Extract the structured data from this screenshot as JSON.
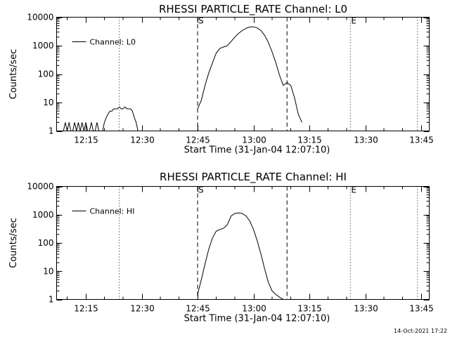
{
  "footer": {
    "timestamp": "14-Oct-2021 17:22"
  },
  "chart_data": [
    {
      "type": "line",
      "title": "RHESSI PARTICLE_RATE Channel: L0",
      "xlabel": "Start Time (31-Jan-04 12:07:10)",
      "ylabel": "Counts/sec",
      "yscale": "log",
      "ylim": [
        1,
        10000
      ],
      "xlim_minutes": [
        0,
        100
      ],
      "x_ticks": [
        "12:15",
        "12:30",
        "12:45",
        "13:00",
        "13:15",
        "13:30",
        "13:45"
      ],
      "y_ticks": [
        "1",
        "10",
        "100",
        "1000",
        "10000"
      ],
      "legend": {
        "placement": "top-left",
        "entries": [
          "Channel: L0"
        ]
      },
      "markers": [
        {
          "label": "S",
          "time": "12:45",
          "style": "dashed"
        },
        {
          "label": "E",
          "time": "13:26",
          "style": "dotted"
        }
      ],
      "vlines": [
        {
          "time": "12:24",
          "style": "dotted"
        },
        {
          "time": "12:45",
          "style": "dashed"
        },
        {
          "time": "13:09",
          "style": "dashed"
        },
        {
          "time": "13:26",
          "style": "dotted"
        },
        {
          "time": "13:44",
          "style": "dotted"
        }
      ],
      "series": [
        {
          "name": "Channel: L0",
          "segments": [
            {
              "x": [
                "12:09",
                "12:09:30",
                "12:10",
                "12:10:30",
                "12:11",
                "12:11:30",
                "12:12",
                "12:12:30",
                "12:13",
                "12:13:30",
                "12:14",
                "12:14:30",
                "12:15",
                "12:15:30",
                "12:16",
                "12:16:30",
                "12:17",
                "12:17:30",
                "12:18",
                "12:18:30",
                "12:19",
                "12:19:30",
                "12:20",
                "12:20:30",
                "12:21",
                "12:21:30",
                "12:22",
                "12:22:30",
                "12:23",
                "12:23:30",
                "12:24",
                "12:24:30",
                "12:25",
                "12:25:30",
                "12:26",
                "12:26:30",
                "12:27",
                "12:27:30",
                "12:28",
                "12:28:30",
                "12:29"
              ],
              "y": [
                1,
                2,
                1,
                2,
                1,
                1,
                2,
                1,
                2,
                1,
                2,
                1,
                2,
                1,
                1,
                2,
                1,
                1,
                2,
                1,
                1,
                1,
                2,
                3,
                4,
                5,
                5,
                6,
                6,
                6,
                7,
                6,
                6,
                7,
                6,
                6,
                6,
                5,
                3,
                2,
                1
              ]
            },
            {
              "x": [
                "12:45",
                "12:46",
                "12:47",
                "12:48",
                "12:49",
                "12:50",
                "12:51",
                "12:52",
                "12:53",
                "12:54",
                "12:55",
                "12:56",
                "12:57",
                "12:58",
                "12:59",
                "13:00",
                "13:01",
                "13:02",
                "13:03",
                "13:04",
                "13:05",
                "13:06",
                "13:07",
                "13:08",
                "13:09",
                "13:10",
                "13:11",
                "13:12",
                "13:13"
              ],
              "y": [
                6,
                12,
                40,
                110,
                250,
                550,
                800,
                900,
                1000,
                1400,
                2000,
                2700,
                3400,
                4100,
                4500,
                4600,
                4200,
                3400,
                2300,
                1300,
                600,
                250,
                90,
                40,
                50,
                40,
                15,
                4,
                2
              ]
            }
          ]
        }
      ]
    },
    {
      "type": "line",
      "title": "RHESSI PARTICLE_RATE Channel: HI",
      "xlabel": "Start Time (31-Jan-04 12:07:10)",
      "ylabel": "Counts/sec",
      "yscale": "log",
      "ylim": [
        1,
        10000
      ],
      "xlim_minutes": [
        0,
        100
      ],
      "x_ticks": [
        "12:15",
        "12:30",
        "12:45",
        "13:00",
        "13:15",
        "13:30",
        "13:45"
      ],
      "y_ticks": [
        "1",
        "10",
        "100",
        "1000",
        "10000"
      ],
      "legend": {
        "placement": "top-left",
        "entries": [
          "Channel: HI"
        ]
      },
      "markers": [
        {
          "label": "S",
          "time": "12:45",
          "style": "dashed"
        },
        {
          "label": "E",
          "time": "13:26",
          "style": "dotted"
        }
      ],
      "vlines": [
        {
          "time": "12:24",
          "style": "dotted"
        },
        {
          "time": "12:45",
          "style": "dashed"
        },
        {
          "time": "13:09",
          "style": "dashed"
        },
        {
          "time": "13:26",
          "style": "dotted"
        },
        {
          "time": "13:44",
          "style": "dotted"
        }
      ],
      "series": [
        {
          "name": "Channel: HI",
          "segments": [
            {
              "x": [
                "12:45",
                "12:46",
                "12:47",
                "12:48",
                "12:49",
                "12:50",
                "12:51",
                "12:52",
                "12:53",
                "12:54",
                "12:55",
                "12:56",
                "12:57",
                "12:58",
                "12:59",
                "13:00",
                "13:01",
                "13:02",
                "13:03",
                "13:04",
                "13:05",
                "13:06",
                "13:07",
                "13:08",
                "13:09"
              ],
              "y": [
                1.5,
                5,
                18,
                60,
                150,
                260,
                300,
                330,
                450,
                900,
                1100,
                1150,
                1100,
                900,
                600,
                300,
                120,
                40,
                12,
                4,
                2,
                1.5,
                1.2,
                1,
                1
              ]
            }
          ]
        }
      ]
    }
  ]
}
